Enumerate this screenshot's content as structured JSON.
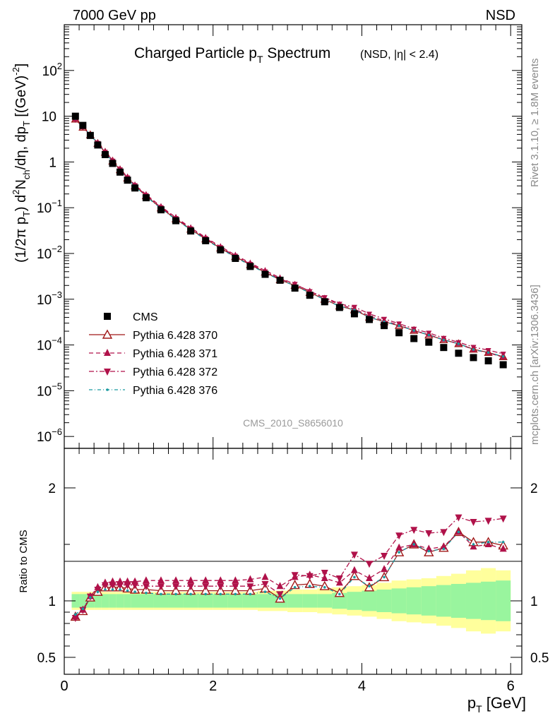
{
  "header": {
    "left": "7000 GeV pp",
    "right": "NSD"
  },
  "side": {
    "rivet": "Rivet 3.1.10, ≥ 1.8M events",
    "mcplots": "mcplots.cern.ch [arXiv:1306.3436]"
  },
  "chart_data": {
    "type": "scatter",
    "title_main": "Charged Particle p",
    "title_sub": "T",
    "title_tail": " Spectrum",
    "title_note": "(NSD, |η| < 2.4)",
    "watermark": "CMS_2010_S8656010",
    "xlabel": "p",
    "xlabel_sub": "T",
    "xlabel_unit": " [GeV]",
    "ylabel": "(1/2π p_T) d²N_ch/dη, dp_T [(GeV)⁻²]",
    "xlim": [
      0,
      6.15
    ],
    "main": {
      "log_y": true,
      "ylim": [
        5.5e-07,
        1000
      ],
      "yticks": [
        {
          "v": 1e-06,
          "label": "10",
          "exp": "−6"
        },
        {
          "v": 1e-05,
          "label": "10",
          "exp": "−5"
        },
        {
          "v": 0.0001,
          "label": "10",
          "exp": "−4"
        },
        {
          "v": 0.001,
          "label": "10",
          "exp": "−3"
        },
        {
          "v": 0.01,
          "label": "10",
          "exp": "−2"
        },
        {
          "v": 0.1,
          "label": "10",
          "exp": "−1"
        },
        {
          "v": 1,
          "label": "1",
          "exp": ""
        },
        {
          "v": 10,
          "label": "10",
          "exp": ""
        },
        {
          "v": 100,
          "label": "10",
          "exp": "2"
        }
      ]
    },
    "ratio": {
      "ylabel": "Ratio to CMS",
      "ylim": [
        0.35,
        2.35
      ],
      "yticks": [
        {
          "v": 0.5,
          "label": "0.5"
        },
        {
          "v": 1,
          "label": "1"
        },
        {
          "v": 2,
          "label": "2"
        }
      ]
    },
    "xticks": [
      {
        "v": 0,
        "label": "0"
      },
      {
        "v": 2,
        "label": "2"
      },
      {
        "v": 4,
        "label": "4"
      },
      {
        "v": 6,
        "label": "6"
      }
    ],
    "x": [
      0.15,
      0.25,
      0.35,
      0.45,
      0.55,
      0.65,
      0.75,
      0.85,
      0.95,
      1.1,
      1.3,
      1.5,
      1.7,
      1.9,
      2.1,
      2.3,
      2.5,
      2.7,
      2.9,
      3.1,
      3.3,
      3.5,
      3.7,
      3.9,
      4.1,
      4.3,
      4.5,
      4.7,
      4.9,
      5.1,
      5.3,
      5.5,
      5.7,
      5.9
    ],
    "cms": [
      10.0,
      6.3,
      3.8,
      2.35,
      1.45,
      0.93,
      0.6,
      0.4,
      0.27,
      0.165,
      0.09,
      0.052,
      0.031,
      0.019,
      0.012,
      0.0078,
      0.0052,
      0.0035,
      0.0026,
      0.00175,
      0.00122,
      0.00088,
      0.00066,
      0.00048,
      0.00036,
      0.000265,
      0.000185,
      0.000138,
      0.000115,
      8.8e-05,
      6.6e-05,
      5.3e-05,
      4.5e-05,
      3.7e-05
    ],
    "band_inner": [
      0.06,
      0.06,
      0.06,
      0.06,
      0.06,
      0.06,
      0.06,
      0.06,
      0.06,
      0.06,
      0.06,
      0.06,
      0.06,
      0.06,
      0.06,
      0.06,
      0.06,
      0.06,
      0.06,
      0.06,
      0.06,
      0.06,
      0.07,
      0.08,
      0.09,
      0.1,
      0.11,
      0.12,
      0.13,
      0.14,
      0.15,
      0.16,
      0.17,
      0.18
    ],
    "band_outer": [
      0.08,
      0.08,
      0.08,
      0.08,
      0.08,
      0.08,
      0.08,
      0.08,
      0.08,
      0.08,
      0.08,
      0.08,
      0.08,
      0.08,
      0.08,
      0.08,
      0.08,
      0.09,
      0.09,
      0.1,
      0.1,
      0.11,
      0.12,
      0.13,
      0.14,
      0.16,
      0.18,
      0.19,
      0.2,
      0.22,
      0.24,
      0.27,
      0.29,
      0.27
    ],
    "band_colors": {
      "inner": "#99f59e",
      "outer": "#ffff9c"
    },
    "series": [
      {
        "name": "CMS",
        "marker": "square",
        "color": "#000000",
        "dash": ""
      },
      {
        "name": "Pythia 6.428 370",
        "marker": "tri-up-open",
        "color": "#a01818",
        "dash": "",
        "ratio": [
          0.86,
          0.91,
          1.03,
          1.08,
          1.12,
          1.12,
          1.12,
          1.11,
          1.1,
          1.1,
          1.09,
          1.09,
          1.09,
          1.09,
          1.09,
          1.09,
          1.09,
          1.11,
          1.02,
          1.14,
          1.15,
          1.13,
          1.07,
          1.22,
          1.12,
          1.21,
          1.43,
          1.5,
          1.43,
          1.47,
          1.61,
          1.52,
          1.52,
          1.49
        ]
      },
      {
        "name": "Pythia 6.428 371",
        "marker": "tri-up",
        "color": "#b0124a",
        "dash": "6,4",
        "ratio": [
          0.86,
          0.92,
          1.04,
          1.12,
          1.16,
          1.17,
          1.17,
          1.17,
          1.17,
          1.18,
          1.18,
          1.18,
          1.18,
          1.18,
          1.18,
          1.18,
          1.19,
          1.21,
          1.13,
          1.21,
          1.23,
          1.2,
          1.16,
          1.27,
          1.2,
          1.28,
          1.47,
          1.5,
          1.46,
          1.48,
          1.61,
          1.48,
          1.5,
          1.46
        ]
      },
      {
        "name": "Pythia 6.428 372",
        "marker": "tri-down",
        "color": "#b0124a",
        "dash": "7,3,2,3",
        "ratio": [
          0.85,
          0.92,
          1.04,
          1.1,
          1.14,
          1.14,
          1.14,
          1.14,
          1.14,
          1.13,
          1.13,
          1.13,
          1.13,
          1.13,
          1.13,
          1.13,
          1.13,
          1.15,
          1.06,
          1.23,
          1.22,
          1.25,
          1.2,
          1.41,
          1.33,
          1.4,
          1.58,
          1.63,
          1.6,
          1.61,
          1.74,
          1.7,
          1.71,
          1.73
        ]
      },
      {
        "name": "Pythia 6.428 376",
        "marker": "dot",
        "color": "#1a9aa0",
        "dash": "5,3,1,3",
        "ratio": [
          0.88,
          0.93,
          1.03,
          1.08,
          1.1,
          1.1,
          1.1,
          1.09,
          1.08,
          1.07,
          1.06,
          1.06,
          1.06,
          1.06,
          1.06,
          1.06,
          1.06,
          1.08,
          1.02,
          1.12,
          1.13,
          1.12,
          1.06,
          1.21,
          1.13,
          1.21,
          1.43,
          1.5,
          1.44,
          1.46,
          1.61,
          1.5,
          1.52,
          1.52
        ]
      }
    ]
  }
}
